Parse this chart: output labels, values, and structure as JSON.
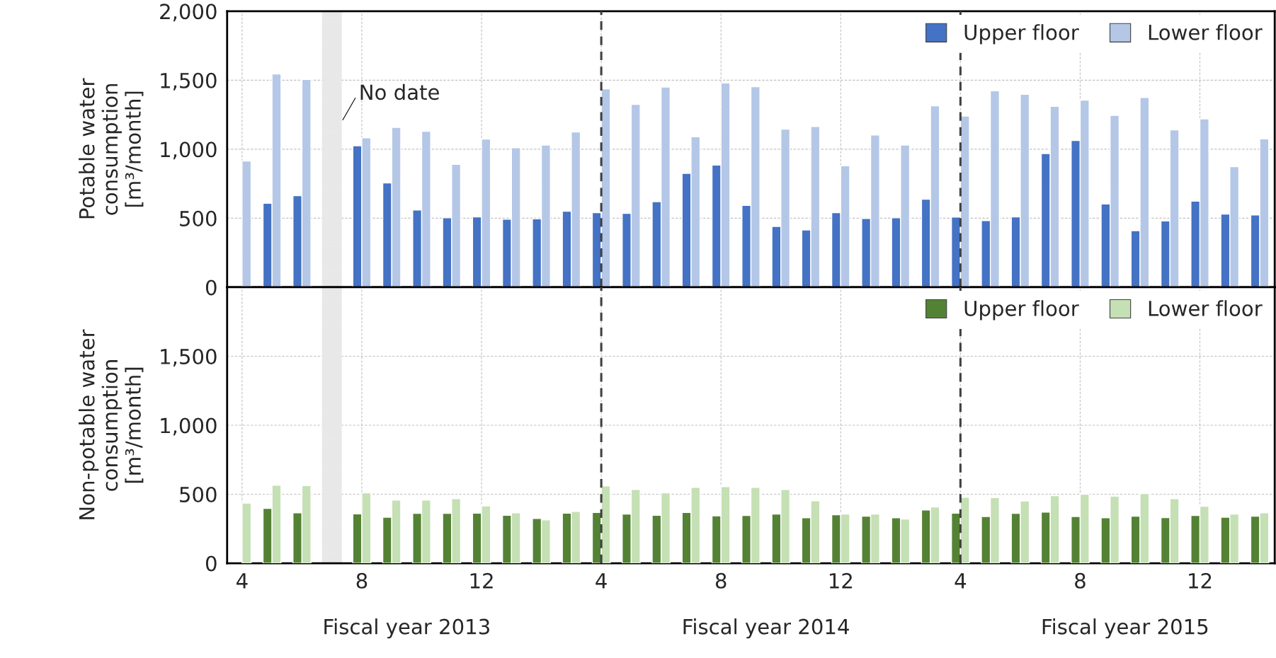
{
  "chart_data": [
    {
      "type": "bar",
      "ylabel": "Potable water\nconsumption\n[m³/month]",
      "categories": [
        "4",
        null,
        null,
        null,
        "8",
        null,
        null,
        null,
        "12",
        null,
        null,
        null,
        "4",
        null,
        null,
        null,
        "8",
        null,
        null,
        null,
        "12",
        null,
        null,
        null,
        "4",
        null,
        null,
        null,
        "8",
        null,
        null,
        null,
        "12",
        null,
        null
      ],
      "series": [
        {
          "name": "Upper floor",
          "color": "#4472c4",
          "values": [
            null,
            608,
            663,
            null,
            1025,
            755,
            560,
            503,
            510,
            493,
            495,
            550,
            540,
            535,
            620,
            825,
            885,
            593,
            440,
            415,
            540,
            498,
            503,
            638,
            508,
            483,
            510,
            968,
            1063,
            603,
            410,
            480,
            623,
            530,
            523
          ]
        },
        {
          "name": "Lower floor",
          "color": "#b4c7e7",
          "values": [
            915,
            1545,
            1505,
            null,
            1083,
            1158,
            1130,
            890,
            1073,
            1010,
            1030,
            1125,
            1438,
            1325,
            1450,
            1090,
            1480,
            1453,
            1145,
            1165,
            880,
            1103,
            1030,
            1315,
            1240,
            1423,
            1398,
            1310,
            1355,
            1245,
            1375,
            1140,
            1220,
            873,
            1075
          ]
        }
      ],
      "ylim": [
        0,
        2000
      ],
      "yticks": [
        {
          "value": 0,
          "label": "0"
        },
        {
          "value": 500,
          "label": "500"
        },
        {
          "value": 1000,
          "label": "1,000"
        },
        {
          "value": 1500,
          "label": "1,500"
        },
        {
          "value": 2000,
          "label": "2,000"
        }
      ],
      "tick_labels": "y",
      "grid": true,
      "legend": "top right",
      "annotations": [
        "No date"
      ]
    },
    {
      "type": "bar",
      "ylabel": "Non-potable water\nconsumption\n[m³/month]",
      "categories": [
        "4",
        null,
        null,
        null,
        "8",
        null,
        null,
        null,
        "12",
        null,
        null,
        null,
        "4",
        null,
        null,
        null,
        "8",
        null,
        null,
        null,
        "12",
        null,
        null,
        null,
        "4",
        null,
        null,
        null,
        "8",
        null,
        null,
        null,
        "12",
        null,
        null
      ],
      "series": [
        {
          "name": "Upper floor",
          "color": "#548235",
          "values": [
            null,
            398,
            366,
            null,
            358,
            333,
            361,
            361,
            363,
            348,
            324,
            363,
            368,
            356,
            348,
            368,
            343,
            346,
            356,
            329,
            351,
            341,
            329,
            386,
            363,
            339,
            361,
            371,
            339,
            329,
            341,
            331,
            346,
            333,
            341
          ]
        },
        {
          "name": "Lower floor",
          "color": "#c5e0b4",
          "values": [
            436,
            565,
            563,
            null,
            510,
            458,
            458,
            468,
            416,
            366,
            314,
            376,
            560,
            535,
            510,
            550,
            555,
            550,
            535,
            453,
            356,
            356,
            321,
            408,
            478,
            475,
            451,
            490,
            500,
            486,
            505,
            468,
            413,
            356,
            366
          ]
        }
      ],
      "ylim": [
        0,
        2000
      ],
      "yticks": [
        {
          "value": 0,
          "label": "0"
        },
        {
          "value": 500,
          "label": "500"
        },
        {
          "value": 1000,
          "label": "1,000"
        },
        {
          "value": 1500,
          "label": "1,500"
        }
      ],
      "grid": true,
      "legend": "top right",
      "annotations": [
        "Fiscal year 2013",
        "Fiscal year 2014",
        "Fiscal year 2015"
      ]
    }
  ]
}
